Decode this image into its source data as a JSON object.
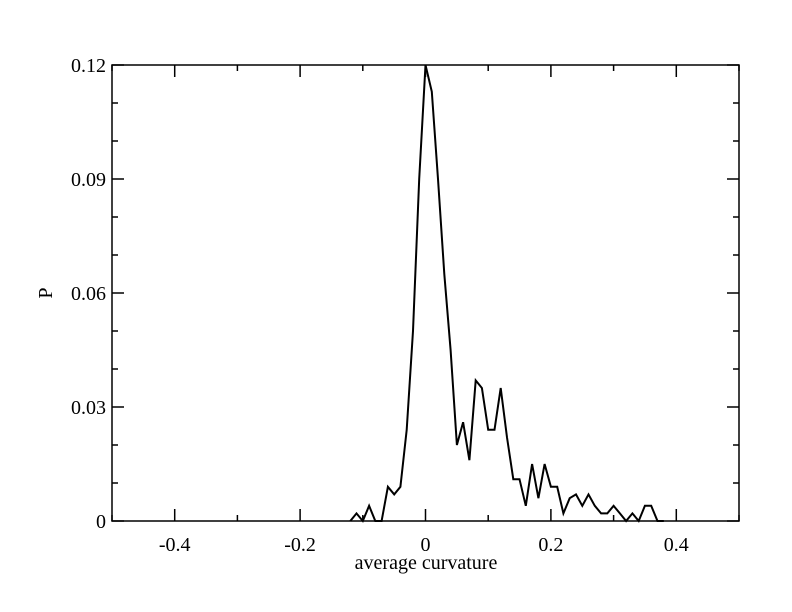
{
  "chart_data": {
    "type": "line",
    "title": "",
    "xlabel": "average curvature",
    "ylabel": "P",
    "xlim": [
      -0.5,
      0.5
    ],
    "ylim": [
      0,
      0.12
    ],
    "x_ticks": [
      -0.4,
      -0.2,
      0,
      0.2,
      0.4
    ],
    "x_tick_labels": [
      "-0.4",
      "-0.2",
      "0",
      "0.2",
      "0.4"
    ],
    "y_ticks": [
      0,
      0.03,
      0.06,
      0.09,
      0.12
    ],
    "y_tick_labels": [
      "0",
      "0.03",
      "0.06",
      "0.09",
      "0.12"
    ],
    "grid": false,
    "legend": "none",
    "line_color": "#000000",
    "series": [
      {
        "x": [
          -0.12,
          -0.11,
          -0.1,
          -0.09,
          -0.08,
          -0.07,
          -0.06,
          -0.05,
          -0.04,
          -0.03,
          -0.02,
          -0.01,
          0.0,
          0.01,
          0.02,
          0.03,
          0.04,
          0.05,
          0.06,
          0.07,
          0.08,
          0.09,
          0.1,
          0.11,
          0.12,
          0.13,
          0.14,
          0.15,
          0.16,
          0.17,
          0.18,
          0.19,
          0.2,
          0.21,
          0.22,
          0.23,
          0.24,
          0.25,
          0.26,
          0.27,
          0.28,
          0.29,
          0.3,
          0.31,
          0.32,
          0.33,
          0.34,
          0.35,
          0.36,
          0.37,
          0.38
        ],
        "values": [
          0,
          0.002,
          0,
          0.004,
          0,
          0,
          0.009,
          0.007,
          0.009,
          0.024,
          0.05,
          0.09,
          0.12,
          0.113,
          0.09,
          0.065,
          0.045,
          0.02,
          0.026,
          0.016,
          0.037,
          0.035,
          0.024,
          0.024,
          0.035,
          0.022,
          0.011,
          0.011,
          0.004,
          0.015,
          0.006,
          0.015,
          0.009,
          0.009,
          0.002,
          0.006,
          0.007,
          0.004,
          0.007,
          0.004,
          0.002,
          0.002,
          0.004,
          0.002,
          0,
          0.002,
          0,
          0.004,
          0.004,
          0,
          0
        ]
      }
    ]
  }
}
